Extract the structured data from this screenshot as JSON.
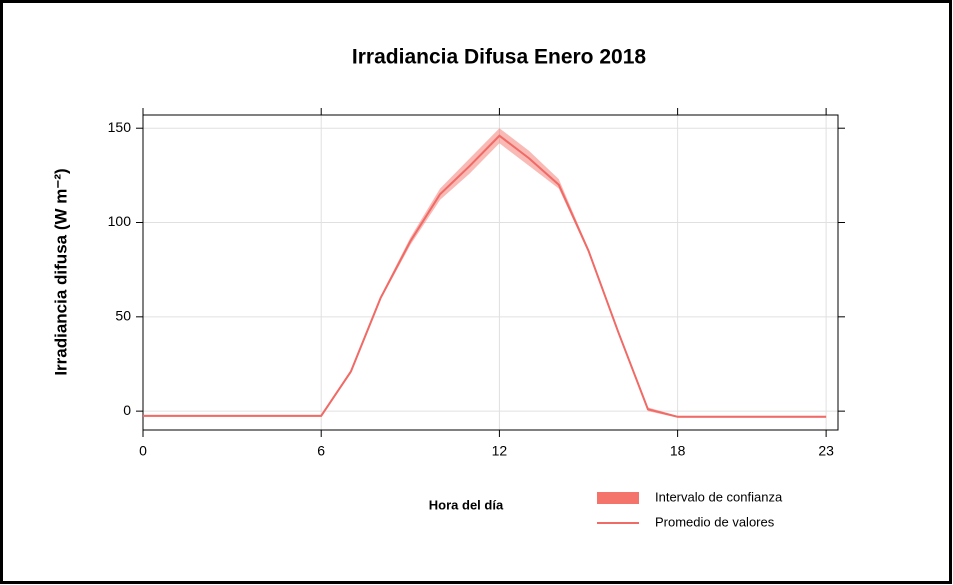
{
  "chart_data": {
    "type": "line",
    "title": "Irradiancia Difusa Enero 2018",
    "xlabel": "Hora del día",
    "ylabel": "Irradiancia difusa (W m⁻²)",
    "x": [
      0,
      1,
      2,
      3,
      4,
      5,
      6,
      7,
      8,
      9,
      10,
      11,
      12,
      13,
      14,
      15,
      16,
      17,
      18,
      19,
      20,
      21,
      22,
      23
    ],
    "series": [
      {
        "name": "Promedio de valores",
        "color": "#f06a66",
        "values": [
          -2.5,
          -2.5,
          -2.5,
          -2.5,
          -2.5,
          -2.5,
          -2.5,
          21,
          60,
          90,
          115,
          130,
          146,
          134,
          120,
          85,
          42,
          1,
          -3,
          -3,
          -3,
          -3,
          -3,
          -3
        ]
      }
    ],
    "band": {
      "name": "Intervalo de confianza",
      "color": "#f4736b",
      "lower": [
        -3,
        -3,
        -3,
        -3,
        -3,
        -3,
        -3,
        20,
        59,
        88,
        112,
        126,
        142,
        130,
        118,
        84,
        41,
        0,
        -3.5,
        -3.5,
        -3.5,
        -3.5,
        -3.5,
        -3.5
      ],
      "upper": [
        -2,
        -2,
        -2,
        -2,
        -2,
        -2,
        -2,
        22,
        61,
        92,
        118,
        134,
        150,
        138,
        123,
        86,
        43,
        2,
        -2.5,
        -2.5,
        -2.5,
        -2.5,
        -2.5,
        -2.5
      ]
    },
    "xlim": [
      0,
      23.4
    ],
    "ylim": [
      -10,
      157
    ],
    "xticks": [
      0,
      6,
      12,
      18,
      23
    ],
    "yticks": [
      0,
      50,
      100,
      150
    ],
    "grid": true
  }
}
